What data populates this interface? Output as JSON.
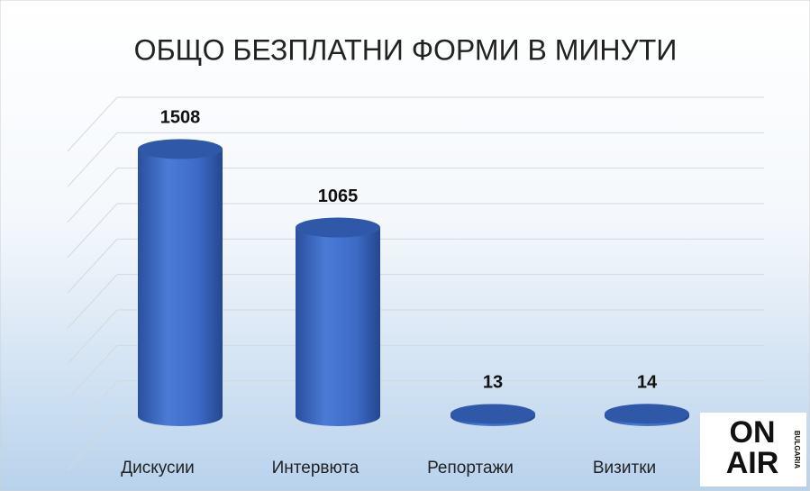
{
  "chart_data": {
    "type": "bar",
    "title": "ОБЩО БЕЗПЛАТНИ ФОРМИ В МИНУТИ",
    "categories": [
      "Дискусии",
      "Интервюта",
      "Репортажи",
      "Визитки"
    ],
    "values": [
      1508,
      1065,
      13,
      14
    ],
    "color": "#3d6cc8",
    "ylim": [
      0,
      1800
    ],
    "yticks": [
      0,
      200,
      400,
      600,
      800,
      1000,
      1200,
      1400,
      1600,
      1800
    ],
    "grid": true
  },
  "logo": {
    "top": "ON",
    "bottom": "AIR",
    "side": "BULGARIA"
  }
}
